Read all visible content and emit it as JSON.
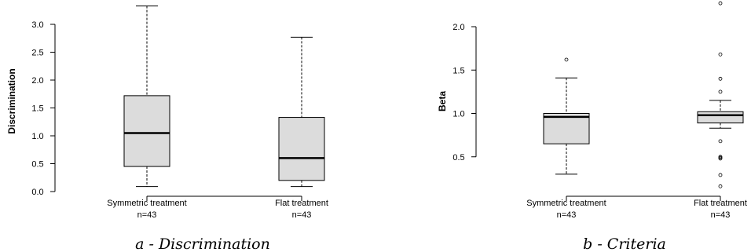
{
  "chart_data": [
    {
      "type": "boxplot",
      "caption": "a - Discrimination",
      "ylabel": "Discrimination",
      "ylim": [
        0,
        3.3
      ],
      "yticks": [
        "0.0",
        "0.5",
        "1.0",
        "1.5",
        "2.0",
        "2.5",
        "3.0"
      ],
      "categories": [
        {
          "label": "Symmetric treatment",
          "n": "n=43",
          "min": 0.09,
          "q1": 0.45,
          "median": 1.05,
          "q3": 1.72,
          "max": 3.33,
          "outliers": []
        },
        {
          "label": "Flat treatment",
          "n": "n=43",
          "min": 0.09,
          "q1": 0.2,
          "median": 0.6,
          "q3": 1.33,
          "max": 2.77,
          "outliers": []
        }
      ]
    },
    {
      "type": "boxplot",
      "caption": "b - Criteria",
      "ylabel": "Beta",
      "ylim": [
        0.25,
        2.3
      ],
      "yticks": [
        "0.5",
        "1.0",
        "1.5",
        "2.0"
      ],
      "categories": [
        {
          "label": "Symmetric treatment",
          "n": "n=43",
          "min": 0.3,
          "q1": 0.65,
          "median": 0.96,
          "q3": 1.0,
          "max": 1.41,
          "outliers": [
            1.62
          ]
        },
        {
          "label": "Flat treatment",
          "n": "n=43",
          "min": 0.83,
          "q1": 0.89,
          "median": 0.98,
          "q3": 1.02,
          "max": 1.15,
          "outliers": [
            2.27,
            1.68,
            1.4,
            1.25,
            0.68,
            0.5,
            0.49,
            0.48,
            0.29,
            0.16
          ]
        }
      ]
    }
  ]
}
